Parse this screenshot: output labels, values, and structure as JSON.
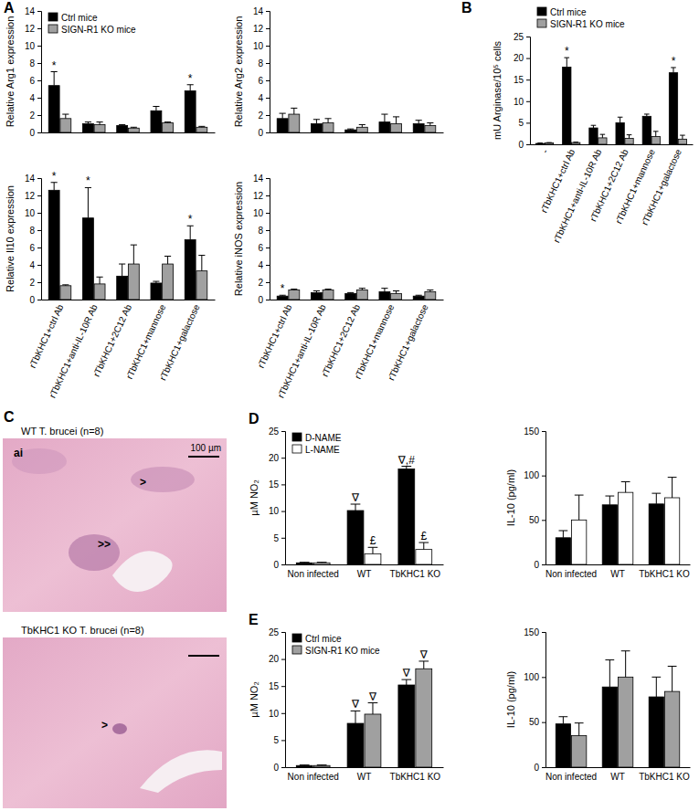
{
  "panel_labels": [
    "A",
    "B",
    "C",
    "D",
    "E"
  ],
  "micrographs": [
    {
      "caption": "WT T. brucei (n=8)",
      "labels": [
        "ai",
        ">",
        ">>"
      ],
      "scale_bar": "100 µm"
    },
    {
      "caption": "TbKHC1 KO T. brucei (n=8)",
      "labels": [
        ">"
      ]
    }
  ],
  "chart_data": [
    {
      "type": "bar",
      "ylabel": "Relative Arg1 expression",
      "categories": [
        "rTbKHC1+ctrl Ab",
        "rTbKHC1+anti-IL-10R Ab",
        "rTbKHC1+2C12 Ab",
        "rTbKHC1+mannose",
        "rTbKHC1+galactose"
      ],
      "series": [
        {
          "name": "Ctrl mice",
          "color": "#000000",
          "values": [
            5.4,
            1.0,
            0.8,
            2.5,
            4.8
          ],
          "errors": [
            1.6,
            0.2,
            0.1,
            0.5,
            0.7
          ]
        },
        {
          "name": "SIGN-R1 KO mice",
          "color": "#a0a0a0",
          "values": [
            1.6,
            0.9,
            0.5,
            1.1,
            0.6
          ],
          "errors": [
            0.5,
            0.3,
            0.1,
            0.1,
            0.1
          ]
        }
      ],
      "ylim": [
        0,
        14
      ],
      "yticks": [
        0,
        2,
        4,
        6,
        8,
        10,
        12,
        14
      ],
      "tick_labels": "y",
      "legend": "upper left",
      "annotations": [
        {
          "text": "*",
          "series": 0,
          "index": 0
        },
        {
          "text": "*",
          "series": 0,
          "index": 4
        }
      ]
    },
    {
      "type": "bar",
      "ylabel": "Relative Arg2 expression",
      "categories": [
        "rTbKHC1+ctrl Ab",
        "rTbKHC1+anti-IL-10R Ab",
        "rTbKHC1+2C12 Ab",
        "rTbKHC1+mannose",
        "rTbKHC1+galactose"
      ],
      "series": [
        {
          "color": "#000000",
          "values": [
            1.6,
            1.0,
            0.3,
            1.2,
            1.0
          ],
          "errors": [
            0.6,
            0.5,
            0.1,
            0.9,
            0.4
          ]
        },
        {
          "color": "#a0a0a0",
          "values": [
            2.1,
            1.1,
            0.6,
            1.0,
            0.8
          ],
          "errors": [
            0.7,
            0.5,
            0.3,
            0.8,
            0.3
          ]
        }
      ],
      "ylim": [
        0,
        14
      ],
      "yticks": [
        0,
        2,
        4,
        6,
        8,
        10,
        12,
        14
      ],
      "tick_labels": "y"
    },
    {
      "type": "bar",
      "ylabel": "Relative Il10 expression",
      "categories": [
        "rTbKHC1+ctrl Ab",
        "rTbKHC1+anti-IL-10R Ab",
        "rTbKHC1+2C12 Ab",
        "rTbKHC1+mannose",
        "rTbKHC1+galactose"
      ],
      "series": [
        {
          "color": "#000000",
          "values": [
            12.6,
            9.4,
            2.7,
            1.9,
            6.9
          ],
          "errors": [
            0.9,
            3.5,
            1.4,
            0.2,
            1.6
          ]
        },
        {
          "color": "#a0a0a0",
          "values": [
            1.6,
            1.8,
            4.1,
            4.1,
            3.3
          ],
          "errors": [
            0.1,
            0.8,
            2.2,
            0.9,
            1.8
          ]
        }
      ],
      "ylim": [
        0,
        14
      ],
      "yticks": [
        0,
        2,
        4,
        6,
        8,
        10,
        12,
        14
      ],
      "annotations": [
        {
          "text": "*",
          "series": 0,
          "index": 0
        },
        {
          "text": "*",
          "series": 0,
          "index": 1
        },
        {
          "text": "*",
          "series": 0,
          "index": 4
        }
      ]
    },
    {
      "type": "bar",
      "ylabel": "Relative iNOS expression",
      "categories": [
        "rTbKHC1+ctrl Ab",
        "rTbKHC1+anti-IL-10R Ab",
        "rTbKHC1+2C12 Ab",
        "rTbKHC1+mannose",
        "rTbKHC1+galactose"
      ],
      "series": [
        {
          "color": "#000000",
          "values": [
            0.4,
            0.8,
            0.7,
            0.9,
            0.4
          ],
          "errors": [
            0.1,
            0.2,
            0.1,
            0.4,
            0.1
          ]
        },
        {
          "color": "#a0a0a0",
          "values": [
            1.1,
            1.1,
            1.1,
            0.7,
            0.9
          ],
          "errors": [
            0.1,
            0.1,
            0.2,
            0.3,
            0.2
          ]
        }
      ],
      "ylim": [
        0,
        14
      ],
      "yticks": [
        0,
        2,
        4,
        6,
        8,
        10,
        12,
        14
      ],
      "annotations": [
        {
          "text": "*",
          "series": 0,
          "index": 0
        }
      ]
    },
    {
      "type": "bar",
      "ylabel": "mU Arginase/10⁵ cells",
      "categories": [
        "-",
        "rTbKHC1+ctrl Ab",
        "rTbKHC1+anti-IL-10R Ab",
        "rTbKHC1+2C12 Ab",
        "rTbKHC1+mannose",
        "rTbKHC1+galactose"
      ],
      "series": [
        {
          "name": "Ctrl mice",
          "color": "#000000",
          "values": [
            0.2,
            17.9,
            3.8,
            5.0,
            6.5,
            16.6
          ],
          "errors": [
            0.1,
            2.2,
            0.6,
            1.3,
            0.5,
            1.2
          ]
        },
        {
          "name": "SIGN-R1 KO mice",
          "color": "#a0a0a0",
          "values": [
            0.3,
            0.4,
            1.5,
            1.4,
            1.8,
            1.2
          ],
          "errors": [
            0.1,
            0.1,
            0.8,
            0.8,
            1.2,
            0.9
          ]
        }
      ],
      "ylim": [
        0,
        25
      ],
      "yticks": [
        0,
        5,
        10,
        15,
        20,
        25
      ],
      "legend": "upper left",
      "annotations": [
        {
          "text": "*",
          "series": 0,
          "index": 1
        },
        {
          "text": "*",
          "series": 0,
          "index": 5
        }
      ]
    },
    {
      "type": "bar",
      "ylabel": "µM NO₂",
      "categories": [
        "Non infected",
        "WT",
        "TbKHC1 KO"
      ],
      "series": [
        {
          "name": "D-NAME",
          "color": "#000000",
          "values": [
            0.3,
            10.1,
            17.9
          ],
          "errors": [
            0.1,
            1.2,
            0.5
          ]
        },
        {
          "name": "L-NAME",
          "color": "#ffffff",
          "values": [
            0.3,
            2.0,
            2.8
          ],
          "errors": [
            0.1,
            1.2,
            1.3
          ]
        }
      ],
      "ylim": [
        0,
        25
      ],
      "yticks": [
        0,
        5,
        10,
        15,
        20,
        25
      ],
      "legend": "upper left",
      "annotations": [
        {
          "text": "∇",
          "series": 0,
          "index": 1
        },
        {
          "text": "∇,#",
          "series": 0,
          "index": 2
        },
        {
          "text": "£",
          "series": 1,
          "index": 1
        },
        {
          "text": "£",
          "series": 1,
          "index": 2
        }
      ]
    },
    {
      "type": "bar",
      "ylabel": "IL-10 (pg/ml)",
      "categories": [
        "Non infected",
        "WT",
        "TbKHC1 KO"
      ],
      "series": [
        {
          "color": "#000000",
          "values": [
            30,
            67,
            68
          ],
          "errors": [
            8,
            10,
            12
          ]
        },
        {
          "color": "#ffffff",
          "values": [
            50,
            81,
            75
          ],
          "errors": [
            28,
            12,
            23
          ]
        }
      ],
      "ylim": [
        0,
        150
      ],
      "yticks": [
        0,
        50,
        100,
        150
      ]
    },
    {
      "type": "bar",
      "ylabel": "µM NO₂",
      "categories": [
        "Non infected",
        "WT",
        "TbKHC1 KO"
      ],
      "series": [
        {
          "name": "Ctrl mice",
          "color": "#000000",
          "values": [
            0.3,
            8.1,
            15.2
          ],
          "errors": [
            0.1,
            2.3,
            1.0
          ]
        },
        {
          "name": "SIGN-R1 KO mice",
          "color": "#a0a0a0",
          "values": [
            0.3,
            9.8,
            18.2
          ],
          "errors": [
            0.1,
            2.1,
            1.4
          ]
        }
      ],
      "ylim": [
        0,
        25
      ],
      "yticks": [
        0,
        5,
        10,
        15,
        20,
        25
      ],
      "legend": "upper left",
      "annotations": [
        {
          "text": "∇",
          "series": 0,
          "index": 1
        },
        {
          "text": "∇",
          "series": 1,
          "index": 1
        },
        {
          "text": "∇",
          "series": 0,
          "index": 2
        },
        {
          "text": "∇",
          "series": 1,
          "index": 2
        }
      ]
    },
    {
      "type": "bar",
      "ylabel": "IL-10 (pg/ml)",
      "categories": [
        "Non infected",
        "WT",
        "TbKHC1 KO"
      ],
      "series": [
        {
          "color": "#000000",
          "values": [
            48,
            89,
            78
          ],
          "errors": [
            8,
            30,
            22
          ]
        },
        {
          "color": "#a0a0a0",
          "values": [
            35,
            100,
            84
          ],
          "errors": [
            14,
            29,
            28
          ]
        }
      ],
      "ylim": [
        0,
        150
      ],
      "yticks": [
        0,
        50,
        100,
        150
      ]
    }
  ]
}
